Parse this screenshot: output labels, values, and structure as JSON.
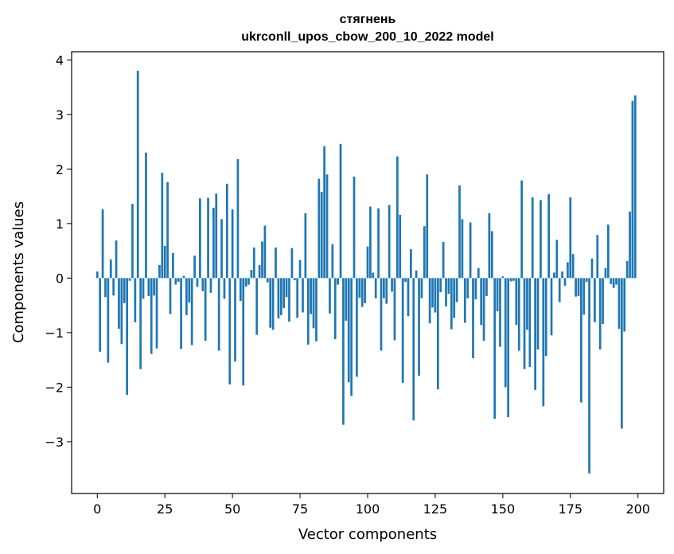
{
  "chart_data": {
    "type": "bar",
    "title": "стягнень",
    "subtitle": "ukrconll_upos_cbow_200_10_2022 model",
    "xlabel": "Vector components",
    "ylabel": "Components values",
    "xlim": [
      -9.5,
      209.5
    ],
    "ylim": [
      -3.95,
      4.15
    ],
    "xticks": [
      0,
      25,
      50,
      75,
      100,
      125,
      150,
      175,
      200
    ],
    "yticks": [
      -3,
      -2,
      -1,
      0,
      1,
      2,
      3,
      4
    ],
    "grid": false,
    "bar_color": "#1f77b4",
    "x": [
      0,
      1,
      2,
      3,
      4,
      5,
      6,
      7,
      8,
      9,
      10,
      11,
      12,
      13,
      14,
      15,
      16,
      17,
      18,
      19,
      20,
      21,
      22,
      23,
      24,
      25,
      26,
      27,
      28,
      29,
      30,
      31,
      32,
      33,
      34,
      35,
      36,
      37,
      38,
      39,
      40,
      41,
      42,
      43,
      44,
      45,
      46,
      47,
      48,
      49,
      50,
      51,
      52,
      53,
      54,
      55,
      56,
      57,
      58,
      59,
      60,
      61,
      62,
      63,
      64,
      65,
      66,
      67,
      68,
      69,
      70,
      71,
      72,
      73,
      74,
      75,
      76,
      77,
      78,
      79,
      80,
      81,
      82,
      83,
      84,
      85,
      86,
      87,
      88,
      89,
      90,
      91,
      92,
      93,
      94,
      95,
      96,
      97,
      98,
      99,
      100,
      101,
      102,
      103,
      104,
      105,
      106,
      107,
      108,
      109,
      110,
      111,
      112,
      113,
      114,
      115,
      116,
      117,
      118,
      119,
      120,
      121,
      122,
      123,
      124,
      125,
      126,
      127,
      128,
      129,
      130,
      131,
      132,
      133,
      134,
      135,
      136,
      137,
      138,
      139,
      140,
      141,
      142,
      143,
      144,
      145,
      146,
      147,
      148,
      149,
      150,
      151,
      152,
      153,
      154,
      155,
      156,
      157,
      158,
      159,
      160,
      161,
      162,
      163,
      164,
      165,
      166,
      167,
      168,
      169,
      170,
      171,
      172,
      173,
      174,
      175,
      176,
      177,
      178,
      179,
      180,
      181,
      182,
      183,
      184,
      185,
      186,
      187,
      188,
      189,
      190,
      191,
      192,
      193,
      194,
      195,
      196,
      197,
      198,
      199
    ],
    "values": [
      0.12,
      -1.35,
      1.26,
      -0.35,
      -1.55,
      0.34,
      -0.32,
      0.69,
      -0.93,
      -1.21,
      -0.46,
      -2.14,
      -0.05,
      1.36,
      -0.81,
      3.8,
      -1.67,
      -0.38,
      2.3,
      -0.33,
      -1.39,
      -0.32,
      -1.29,
      0.24,
      1.93,
      0.59,
      1.76,
      -0.66,
      0.46,
      -0.12,
      -0.07,
      -1.3,
      0.04,
      -0.68,
      -0.45,
      -1.23,
      0.41,
      -0.16,
      1.46,
      -0.24,
      -1.15,
      1.47,
      -0.27,
      1.29,
      1.55,
      -1.33,
      1.08,
      -0.38,
      1.73,
      -1.95,
      1.26,
      -1.53,
      2.18,
      -0.42,
      -1.97,
      -0.16,
      -0.12,
      0.15,
      0.56,
      -1.04,
      0.24,
      0.67,
      0.96,
      -0.08,
      -0.91,
      -0.95,
      0.56,
      -0.74,
      -0.68,
      -0.55,
      -0.35,
      -0.8,
      0.55,
      -0.04,
      -0.73,
      0.33,
      -0.63,
      1.19,
      -1.22,
      -0.66,
      -0.92,
      -1.16,
      1.82,
      1.58,
      2.42,
      1.9,
      -0.65,
      0.62,
      -1.12,
      -0.12,
      2.46,
      -2.69,
      -0.78,
      -1.91,
      -2.16,
      1.86,
      -1.81,
      -0.36,
      -0.53,
      -0.46,
      0.58,
      1.31,
      0.1,
      -0.37,
      1.28,
      -1.33,
      -0.37,
      -0.47,
      1.34,
      -0.25,
      -1.14,
      2.23,
      1.16,
      -1.92,
      -0.07,
      -0.7,
      0.53,
      -2.61,
      0.14,
      -1.79,
      -0.37,
      0.95,
      1.9,
      -0.83,
      -0.54,
      -0.63,
      -2.04,
      -0.26,
      0.66,
      -0.52,
      -0.29,
      -0.94,
      -0.73,
      -0.44,
      1.7,
      1.08,
      -0.82,
      -0.37,
      1.02,
      -1.47,
      -0.39,
      0.18,
      -0.86,
      -1.15,
      -0.33,
      1.19,
      0.86,
      -2.58,
      -0.61,
      -1.26,
      0.03,
      -2.0,
      -2.55,
      -0.06,
      -0.05,
      -0.86,
      -1.33,
      1.79,
      -1.67,
      -0.95,
      -1.63,
      1.48,
      -2.05,
      -1.31,
      1.43,
      -2.35,
      -1.43,
      1.54,
      -1.05,
      0.1,
      0.7,
      -0.44,
      0.12,
      -0.14,
      0.29,
      1.48,
      0.44,
      -0.34,
      -0.33,
      -2.28,
      -0.67,
      -0.07,
      -3.58,
      0.36,
      -0.81,
      0.79,
      -1.31,
      -0.84,
      0.18,
      0.98,
      -0.11,
      -0.18,
      -0.12,
      -0.93,
      -2.76,
      -0.98,
      0.31,
      1.22,
      3.25,
      3.35
    ]
  }
}
